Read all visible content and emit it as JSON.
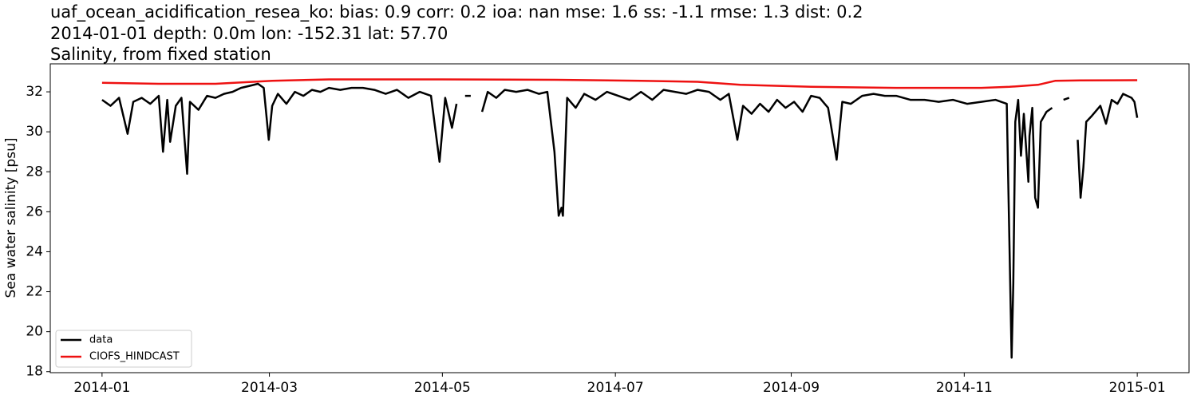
{
  "chart_data": {
    "type": "line",
    "title": "uaf_ocean_acidification_resea_ko: bias: 0.9  corr: 0.2  ioa: nan  mse: 1.6  ss: -1.1  rmse: 1.3  dist: 0.2",
    "subtitle": "2014-01-01 depth: 0.0m lon: -152.31 lat: 57.70",
    "subtitle2": "Salinity, from fixed station",
    "y_label": "Sea water salinity [psu]",
    "xlim": [
      -18.25,
      383.25
    ],
    "xticks": [
      {
        "value": 0,
        "label": "2014-01"
      },
      {
        "value": 59,
        "label": "2014-03"
      },
      {
        "value": 120,
        "label": "2014-05"
      },
      {
        "value": 181,
        "label": "2014-07"
      },
      {
        "value": 243,
        "label": "2014-09"
      },
      {
        "value": 304,
        "label": "2014-11"
      },
      {
        "value": 365,
        "label": "2015-01"
      }
    ],
    "ylim": [
      17.95,
      33.4
    ],
    "yticks": [
      18,
      20,
      22,
      24,
      26,
      28,
      30,
      32
    ],
    "legend": "lower left",
    "series": [
      {
        "name": "data",
        "color": "#000000",
        "x": [
          0,
          3,
          6,
          9,
          11,
          14,
          17,
          20,
          21.5,
          23,
          24,
          26,
          28,
          30,
          31,
          34,
          37,
          40,
          43,
          46,
          49,
          52,
          55,
          57,
          58.8,
          60,
          62,
          65,
          68,
          71,
          74,
          77,
          80,
          84,
          88,
          92,
          96,
          100,
          104,
          108,
          112,
          116,
          119,
          121,
          123.4,
          125,
          126.5,
          128,
          130,
          132,
          134,
          136,
          139,
          142,
          146,
          150,
          154,
          157,
          159.5,
          161,
          162,
          162.5,
          164,
          167,
          170,
          174,
          178,
          182,
          186,
          190,
          194,
          198,
          202,
          206,
          210,
          214,
          218,
          221,
          224,
          226,
          229,
          232,
          235,
          238,
          241,
          244,
          247,
          250,
          253,
          256,
          259,
          261,
          264,
          268,
          272,
          276,
          280,
          285,
          290,
          295,
          300,
          305,
          310,
          315,
          319,
          320.7,
          321.3,
          322,
          323,
          324,
          325,
          326.6,
          327,
          328,
          329,
          330,
          331,
          333,
          335,
          337,
          339,
          341,
          342.5,
          344,
          345,
          346,
          347,
          349,
          352,
          354,
          356,
          358,
          360,
          363,
          364,
          365
        ],
        "values": [
          31.6,
          31.3,
          31.7,
          29.9,
          31.5,
          31.7,
          31.4,
          31.8,
          29.0,
          31.6,
          29.5,
          31.3,
          31.7,
          27.9,
          31.5,
          31.1,
          31.8,
          31.7,
          31.9,
          32.0,
          32.2,
          32.3,
          32.4,
          32.2,
          29.6,
          31.3,
          31.9,
          31.4,
          32.0,
          31.8,
          32.1,
          32.0,
          32.2,
          32.1,
          32.2,
          32.2,
          32.1,
          31.9,
          32.1,
          31.7,
          32.0,
          31.8,
          28.5,
          31.7,
          30.2,
          31.4,
          null,
          31.8,
          31.8,
          null,
          31.0,
          32.0,
          31.7,
          32.1,
          32.0,
          32.1,
          31.9,
          32.0,
          29.0,
          25.8,
          26.2,
          25.8,
          31.7,
          31.2,
          31.9,
          31.6,
          32.0,
          31.8,
          31.6,
          32.0,
          31.6,
          32.1,
          32.0,
          31.9,
          32.1,
          32.0,
          31.6,
          31.9,
          29.6,
          31.3,
          30.9,
          31.4,
          31.0,
          31.6,
          31.2,
          31.5,
          31.0,
          31.8,
          31.7,
          31.2,
          28.6,
          31.5,
          31.4,
          31.8,
          31.9,
          31.8,
          31.8,
          31.6,
          31.6,
          31.5,
          31.6,
          31.4,
          31.5,
          31.6,
          31.4,
          18.7,
          22.4,
          30.5,
          31.6,
          28.8,
          30.9,
          27.5,
          29.8,
          31.2,
          26.7,
          26.2,
          30.5,
          31.0,
          31.2,
          null,
          31.6,
          31.7,
          null,
          29.6,
          26.7,
          28.2,
          30.5,
          30.8,
          31.3,
          30.4,
          31.6,
          31.4,
          31.9,
          31.7,
          31.5,
          30.7
        ]
      },
      {
        "name": "CIOFS_HINDCAST",
        "color": "#ee1111",
        "x": [
          0,
          20,
          40,
          60,
          80,
          120,
          160,
          190,
          210,
          225,
          250,
          280,
          310,
          320,
          330,
          336,
          345,
          365
        ],
        "values": [
          32.45,
          32.4,
          32.4,
          32.55,
          32.62,
          32.62,
          32.6,
          32.55,
          32.5,
          32.35,
          32.25,
          32.2,
          32.2,
          32.25,
          32.35,
          32.55,
          32.57,
          32.58
        ]
      }
    ]
  }
}
